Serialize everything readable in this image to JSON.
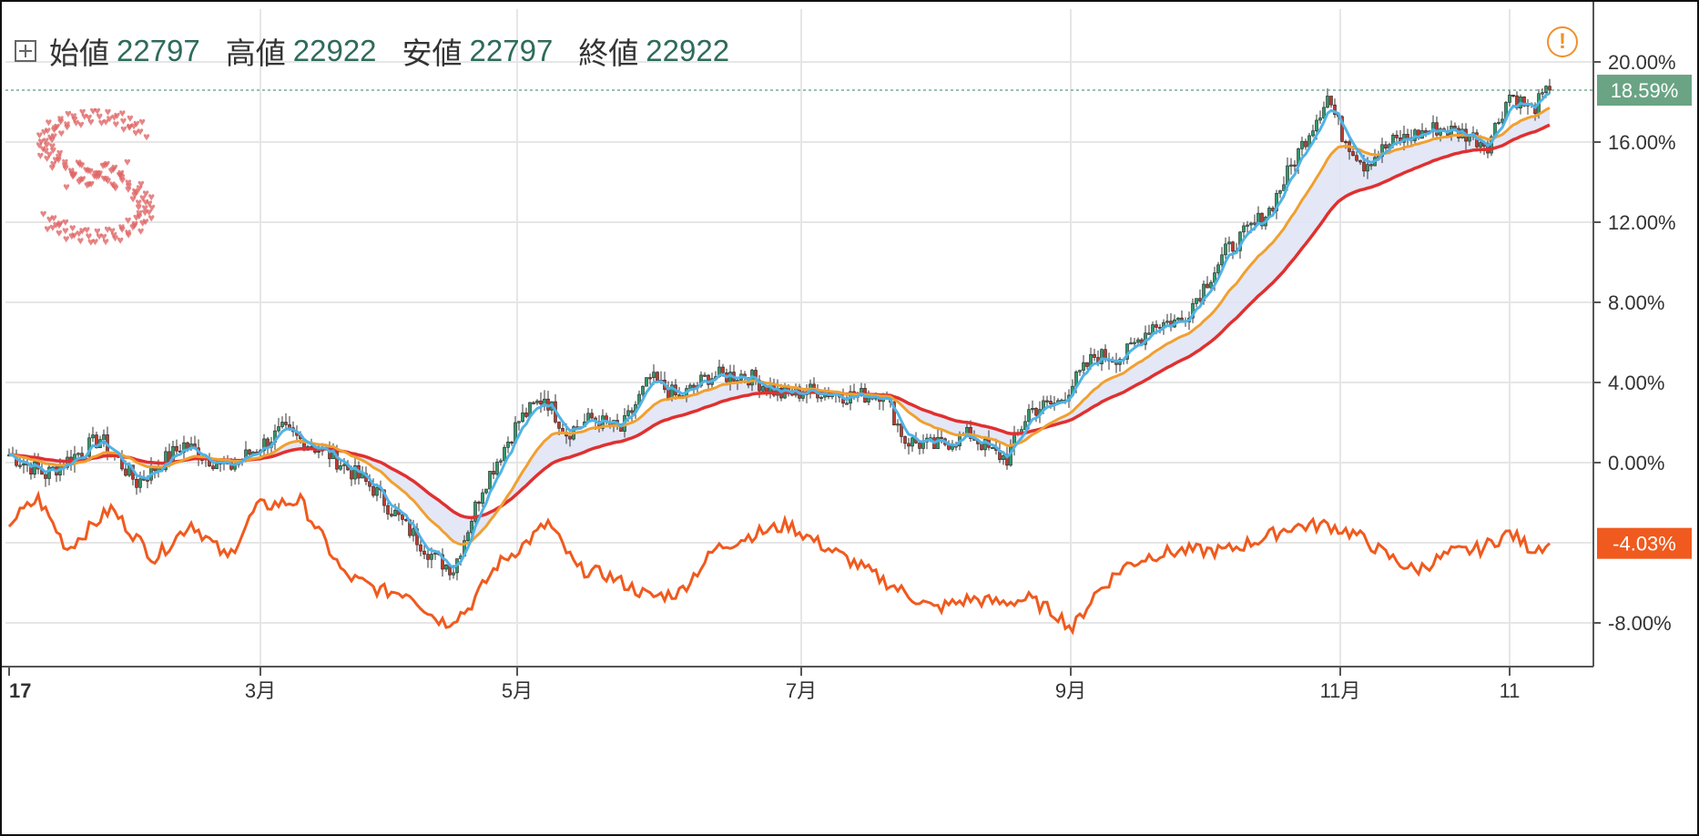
{
  "legend": {
    "open_label": "始値",
    "open_value": "22797",
    "high_label": "高値",
    "high_value": "22922",
    "low_label": "安値",
    "low_value": "22797",
    "close_label": "終値",
    "close_value": "22922"
  },
  "badges": {
    "main_price": "18.59%",
    "compare_price": "-4.03%"
  },
  "warning_icon": "exclamation-circle-icon",
  "colors": {
    "up": "#2e9a6b",
    "down": "#c0392b",
    "ma_fast": "#4fb3e6",
    "ma_mid": "#f0a030",
    "ma_slow": "#e03030",
    "compare": "#f05a1e",
    "band": "#dfe3f5",
    "badge_main": "#6aa484",
    "badge_compare": "#f05a1e",
    "warn": "#f0902c"
  },
  "chart_data": {
    "type": "candlestick",
    "y_axis": {
      "ticks": [
        "20.00%",
        "16.00%",
        "12.00%",
        "8.00%",
        "4.00%",
        "0.00%",
        "-8.00%"
      ],
      "range": [
        -9.5,
        22.5
      ],
      "unit": "%"
    },
    "x_axis": {
      "tick_labels": [
        "17",
        "3月",
        "5月",
        "7月",
        "9月",
        "11月",
        "11"
      ]
    },
    "main_series": {
      "anchors": [
        [
          0,
          0.4
        ],
        [
          10,
          -0.6
        ],
        [
          25,
          1.2
        ],
        [
          35,
          -1.0
        ],
        [
          48,
          0.9
        ],
        [
          60,
          -0.3
        ],
        [
          75,
          1.6
        ],
        [
          88,
          0.4
        ],
        [
          100,
          -1.3
        ],
        [
          110,
          -3.4
        ],
        [
          117,
          -4.8
        ],
        [
          122,
          -5.3
        ],
        [
          130,
          -1.2
        ],
        [
          140,
          2.1
        ],
        [
          147,
          3.3
        ],
        [
          153,
          1.5
        ],
        [
          160,
          2.2
        ],
        [
          168,
          1.6
        ],
        [
          176,
          4.2
        ],
        [
          184,
          3.2
        ],
        [
          192,
          4.3
        ],
        [
          202,
          4.4
        ],
        [
          212,
          3.4
        ],
        [
          222,
          3.6
        ],
        [
          232,
          3.3
        ],
        [
          240,
          3.5
        ],
        [
          246,
          1.1
        ],
        [
          254,
          0.8
        ],
        [
          264,
          1.4
        ],
        [
          270,
          0.5
        ],
        [
          274,
          0.2
        ],
        [
          280,
          2.6
        ],
        [
          288,
          3.0
        ],
        [
          298,
          5.3
        ],
        [
          306,
          5.3
        ],
        [
          314,
          6.9
        ],
        [
          322,
          7.1
        ],
        [
          334,
          10.5
        ],
        [
          346,
          12.6
        ],
        [
          354,
          15.5
        ],
        [
          362,
          18.3
        ],
        [
          366,
          16.4
        ],
        [
          372,
          14.9
        ],
        [
          380,
          16.0
        ],
        [
          392,
          16.7
        ],
        [
          400,
          16.4
        ],
        [
          406,
          15.9
        ],
        [
          412,
          18.4
        ],
        [
          418,
          17.6
        ],
        [
          423,
          18.6
        ]
      ],
      "last_value": 18.59
    },
    "compare_series": {
      "anchors": [
        [
          0,
          -3.0
        ],
        [
          8,
          -1.8
        ],
        [
          16,
          -4.3
        ],
        [
          28,
          -2.3
        ],
        [
          40,
          -4.8
        ],
        [
          50,
          -3.0
        ],
        [
          60,
          -4.8
        ],
        [
          68,
          -2.2
        ],
        [
          80,
          -1.9
        ],
        [
          92,
          -5.6
        ],
        [
          102,
          -6.4
        ],
        [
          110,
          -6.5
        ],
        [
          116,
          -7.6
        ],
        [
          120,
          -8.0
        ],
        [
          126,
          -7.3
        ],
        [
          134,
          -5.1
        ],
        [
          142,
          -4.0
        ],
        [
          148,
          -3.0
        ],
        [
          156,
          -5.3
        ],
        [
          164,
          -5.6
        ],
        [
          176,
          -6.7
        ],
        [
          184,
          -6.5
        ],
        [
          194,
          -4.3
        ],
        [
          204,
          -3.6
        ],
        [
          214,
          -3.1
        ],
        [
          222,
          -4.0
        ],
        [
          232,
          -5.0
        ],
        [
          244,
          -6.3
        ],
        [
          254,
          -7.3
        ],
        [
          264,
          -6.8
        ],
        [
          272,
          -7.0
        ],
        [
          280,
          -6.8
        ],
        [
          288,
          -7.6
        ],
        [
          292,
          -8.3
        ],
        [
          298,
          -6.6
        ],
        [
          306,
          -5.2
        ],
        [
          314,
          -4.6
        ],
        [
          322,
          -4.4
        ],
        [
          334,
          -4.4
        ],
        [
          344,
          -3.8
        ],
        [
          352,
          -3.2
        ],
        [
          362,
          -3.1
        ],
        [
          370,
          -3.6
        ],
        [
          378,
          -4.6
        ],
        [
          386,
          -5.4
        ],
        [
          396,
          -4.5
        ],
        [
          404,
          -4.3
        ],
        [
          412,
          -3.5
        ],
        [
          418,
          -4.3
        ],
        [
          423,
          -4.03
        ]
      ],
      "last_value": -4.03
    },
    "moving_averages": [
      "fast",
      "mid",
      "slow"
    ]
  }
}
